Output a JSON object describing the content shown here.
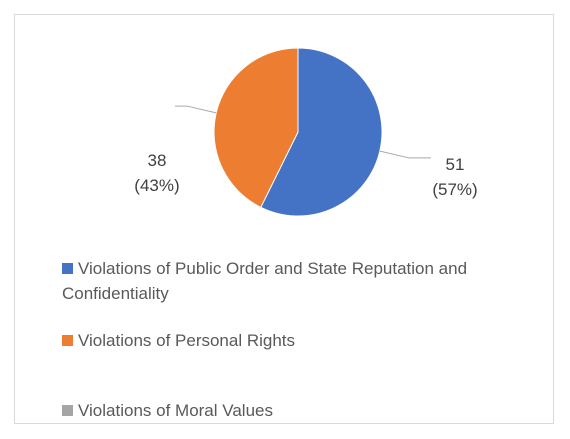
{
  "chart_data": {
    "type": "pie",
    "categories": [
      "Violations of Public Order and State Reputation and Confidentiality",
      "Violations of Personal Rights",
      "Violations of Moral Values"
    ],
    "values": [
      51,
      38,
      0
    ],
    "value_labels": [
      "51 (57%)",
      "38 (43%)",
      null
    ],
    "colors": [
      "#4472c4",
      "#ed7d31",
      "#a5a5a5"
    ],
    "legend": "bottom"
  }
}
